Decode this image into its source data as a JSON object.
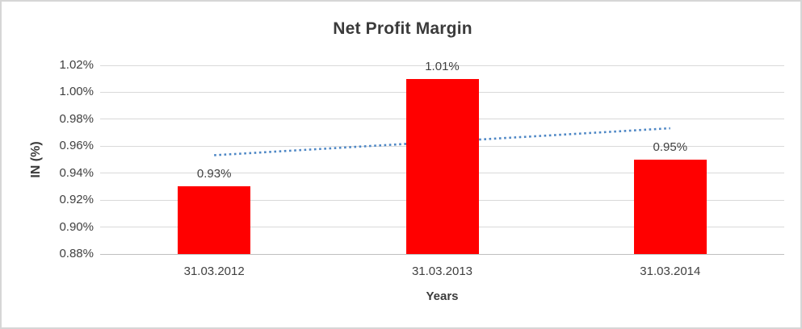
{
  "chart_data": {
    "type": "bar",
    "title": "Net Profit Margin",
    "xlabel": "Years",
    "ylabel": "IN (%)",
    "categories": [
      "31.03.2012",
      "31.03.2013",
      "31.03.2014"
    ],
    "values": [
      0.93,
      1.01,
      0.95
    ],
    "data_labels": [
      "0.93%",
      "1.01%",
      "0.95%"
    ],
    "ylim": [
      0.88,
      1.02
    ],
    "ytick_step": 0.02,
    "ytick_labels": [
      "0.88%",
      "0.90%",
      "0.92%",
      "0.94%",
      "0.96%",
      "0.98%",
      "1.00%",
      "1.02%"
    ],
    "grid": true,
    "legend": "none",
    "bar_color": "#ff0000",
    "trendline": {
      "type": "linear",
      "style": "dotted",
      "color": "#4e87c5",
      "fit_values": [
        0.9533,
        0.9633,
        0.9733
      ]
    },
    "colors": {
      "title_text": "#3b3b3b",
      "axis_text": "#404040",
      "gridline": "#d9d9d9",
      "axis_line": "#bfbfbf",
      "background": "#ffffff",
      "frame_border": "#d6d6d6"
    }
  }
}
